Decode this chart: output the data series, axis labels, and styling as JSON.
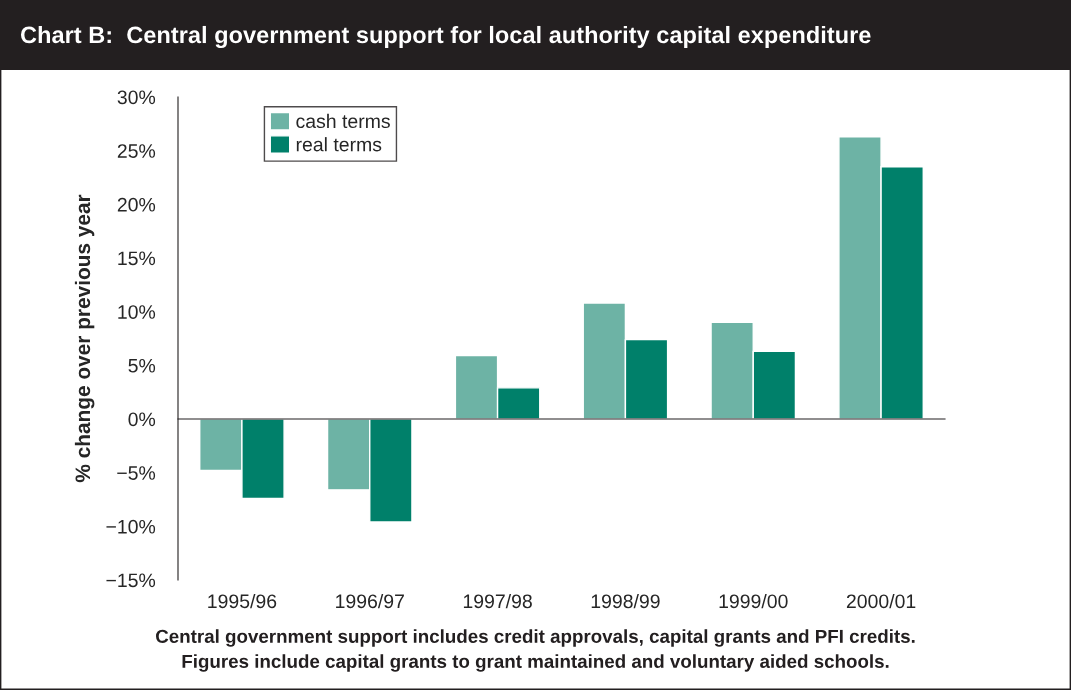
{
  "chart_data": {
    "type": "bar",
    "title": "Chart B:  Central government support for local authority capital expenditure",
    "ylabel": "% change over previous year",
    "categories": [
      "1995/96",
      "1996/97",
      "1997/98",
      "1998/99",
      "1999/00",
      "2000/01"
    ],
    "series": [
      {
        "name": "cash terms",
        "color": "#6db3a5",
        "values": [
          -4.8,
          -6.6,
          5.9,
          10.8,
          9.0,
          26.3
        ]
      },
      {
        "name": "real terms",
        "color": "#00806a",
        "values": [
          -7.4,
          -9.6,
          2.9,
          7.4,
          6.3,
          23.5
        ]
      }
    ],
    "ylim": [
      -15,
      30
    ],
    "yticks": [
      {
        "value": -15,
        "label": "−15%"
      },
      {
        "value": -10,
        "label": "−10%"
      },
      {
        "value": -5,
        "label": "−5%"
      },
      {
        "value": 0,
        "label": "0%"
      },
      {
        "value": 5,
        "label": "5%"
      },
      {
        "value": 10,
        "label": "10%"
      },
      {
        "value": 15,
        "label": "15%"
      },
      {
        "value": 20,
        "label": "20%"
      },
      {
        "value": 25,
        "label": "25%"
      },
      {
        "value": 30,
        "label": "30%"
      }
    ],
    "legend": "top left",
    "annotations": [
      "Central government support includes credit approvals, capital grants and PFI credits.",
      "Figures include capital grants to grant maintained and voluntary aided schools."
    ]
  }
}
